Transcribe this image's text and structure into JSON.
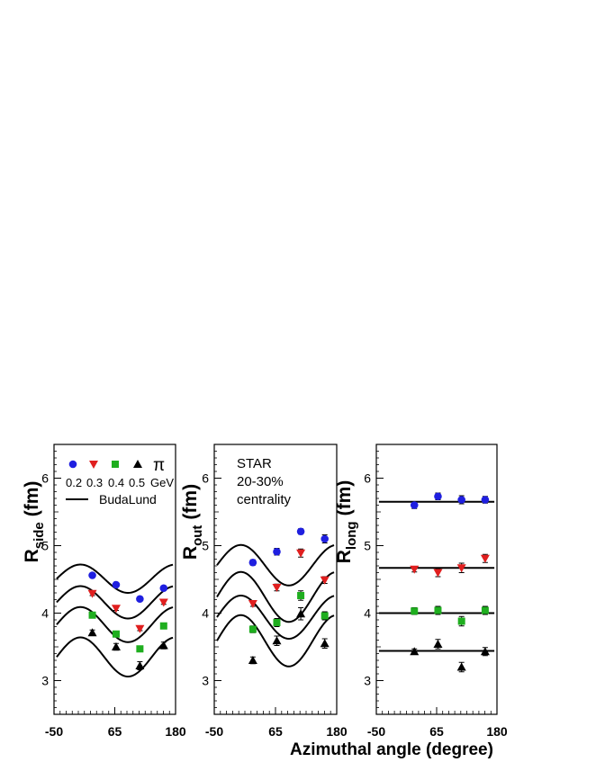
{
  "figure": {
    "xlabel": "Azimuthal angle (degree)",
    "legend": {
      "particle_symbol": "π",
      "pt_labels": [
        "0.2",
        "0.3",
        "0.4",
        "0.5"
      ],
      "unit": "GeV",
      "model_label": "BudaLund"
    },
    "annotation": [
      "STAR",
      "20-30%",
      "centrality"
    ]
  },
  "chart_data": [
    {
      "type": "scatter",
      "title": "",
      "ylabel_main": "R",
      "ylabel_sub": "side",
      "ylabel_unit": "(fm)",
      "xlim": [
        -50,
        180
      ],
      "ylim": [
        2.5,
        6.5
      ],
      "xticks": [
        -50,
        65,
        180
      ],
      "yticks": [
        3,
        4,
        5,
        6
      ],
      "x": [
        22.5,
        67.5,
        112.5,
        157.5
      ],
      "series": [
        {
          "name": "0.2 GeV",
          "marker": "circle",
          "color": "#1f1fe0",
          "values": [
            4.56,
            4.42,
            4.21,
            4.37
          ],
          "errors": [
            0.03,
            0.03,
            0.03,
            0.03
          ]
        },
        {
          "name": "0.3 GeV",
          "marker": "triangle-down",
          "color": "#e01f1f",
          "values": [
            4.29,
            4.07,
            3.77,
            4.16
          ],
          "errors": [
            0.03,
            0.03,
            0.03,
            0.03
          ]
        },
        {
          "name": "0.4 GeV",
          "marker": "square",
          "color": "#1fae1f",
          "values": [
            3.97,
            3.69,
            3.47,
            3.81
          ],
          "errors": [
            0.03,
            0.04,
            0.04,
            0.04
          ]
        },
        {
          "name": "0.5 GeV",
          "marker": "triangle-up",
          "color": "#000000",
          "values": [
            3.71,
            3.5,
            3.22,
            3.52
          ],
          "errors": [
            0.04,
            0.05,
            0.06,
            0.05
          ]
        }
      ],
      "model_curves": [
        {
          "mean": 4.51,
          "amplitude": 0.21
        },
        {
          "mean": 4.16,
          "amplitude": 0.24
        },
        {
          "mean": 3.83,
          "amplitude": 0.26
        },
        {
          "mean": 3.35,
          "amplitude": 0.29
        }
      ]
    },
    {
      "type": "scatter",
      "title": "",
      "ylabel_main": "R",
      "ylabel_sub": "out",
      "ylabel_unit": "(fm)",
      "xlim": [
        -50,
        180
      ],
      "ylim": [
        2.5,
        6.5
      ],
      "xticks": [
        -50,
        65,
        180
      ],
      "yticks": [
        3,
        4,
        5,
        6
      ],
      "x": [
        22.5,
        67.5,
        112.5,
        157.5
      ],
      "series": [
        {
          "name": "0.2 GeV",
          "marker": "circle",
          "color": "#1f1fe0",
          "values": [
            4.75,
            4.91,
            5.21,
            5.1
          ],
          "errors": [
            0.04,
            0.05,
            0.04,
            0.06
          ]
        },
        {
          "name": "0.3 GeV",
          "marker": "triangle-down",
          "color": "#e01f1f",
          "values": [
            4.14,
            4.38,
            4.89,
            4.49
          ],
          "errors": [
            0.04,
            0.05,
            0.06,
            0.05
          ]
        },
        {
          "name": "0.4 GeV",
          "marker": "square",
          "color": "#1fae1f",
          "values": [
            3.76,
            3.86,
            4.26,
            3.96
          ],
          "errors": [
            0.05,
            0.06,
            0.07,
            0.06
          ]
        },
        {
          "name": "0.5 GeV",
          "marker": "triangle-up",
          "color": "#000000",
          "values": [
            3.3,
            3.59,
            3.99,
            3.55
          ],
          "errors": [
            0.05,
            0.07,
            0.09,
            0.07
          ]
        }
      ],
      "model_curves": [
        {
          "mean": 4.71,
          "amplitude": 0.3
        },
        {
          "mean": 4.24,
          "amplitude": 0.37
        },
        {
          "mean": 3.94,
          "amplitude": 0.32
        },
        {
          "mean": 3.59,
          "amplitude": 0.38
        }
      ]
    },
    {
      "type": "scatter",
      "title": "",
      "ylabel_main": "R",
      "ylabel_sub": "long",
      "ylabel_unit": "(fm)",
      "xlim": [
        -50,
        180
      ],
      "ylim": [
        2.5,
        6.5
      ],
      "xticks": [
        -50,
        65,
        180
      ],
      "yticks": [
        3,
        4,
        5,
        6
      ],
      "x": [
        22.5,
        67.5,
        112.5,
        157.5
      ],
      "series": [
        {
          "name": "0.2 GeV",
          "marker": "circle",
          "color": "#1f1fe0",
          "values": [
            5.6,
            5.73,
            5.68,
            5.68
          ],
          "errors": [
            0.05,
            0.05,
            0.06,
            0.05
          ]
        },
        {
          "name": "0.3 GeV",
          "marker": "triangle-down",
          "color": "#e01f1f",
          "values": [
            4.65,
            4.6,
            4.67,
            4.81
          ],
          "errors": [
            0.04,
            0.06,
            0.07,
            0.06
          ]
        },
        {
          "name": "0.4 GeV",
          "marker": "square",
          "color": "#1fae1f",
          "values": [
            4.03,
            4.04,
            3.88,
            4.04
          ],
          "errors": [
            0.05,
            0.06,
            0.07,
            0.06
          ]
        },
        {
          "name": "0.5 GeV",
          "marker": "triangle-up",
          "color": "#000000",
          "values": [
            3.43,
            3.54,
            3.2,
            3.43
          ],
          "errors": [
            0.04,
            0.07,
            0.07,
            0.06
          ]
        }
      ],
      "model_curves": [
        {
          "mean": 5.65,
          "amplitude": 0.0
        },
        {
          "mean": 4.67,
          "amplitude": 0.0
        },
        {
          "mean": 4.0,
          "amplitude": 0.0
        },
        {
          "mean": 3.44,
          "amplitude": 0.0
        }
      ]
    }
  ]
}
